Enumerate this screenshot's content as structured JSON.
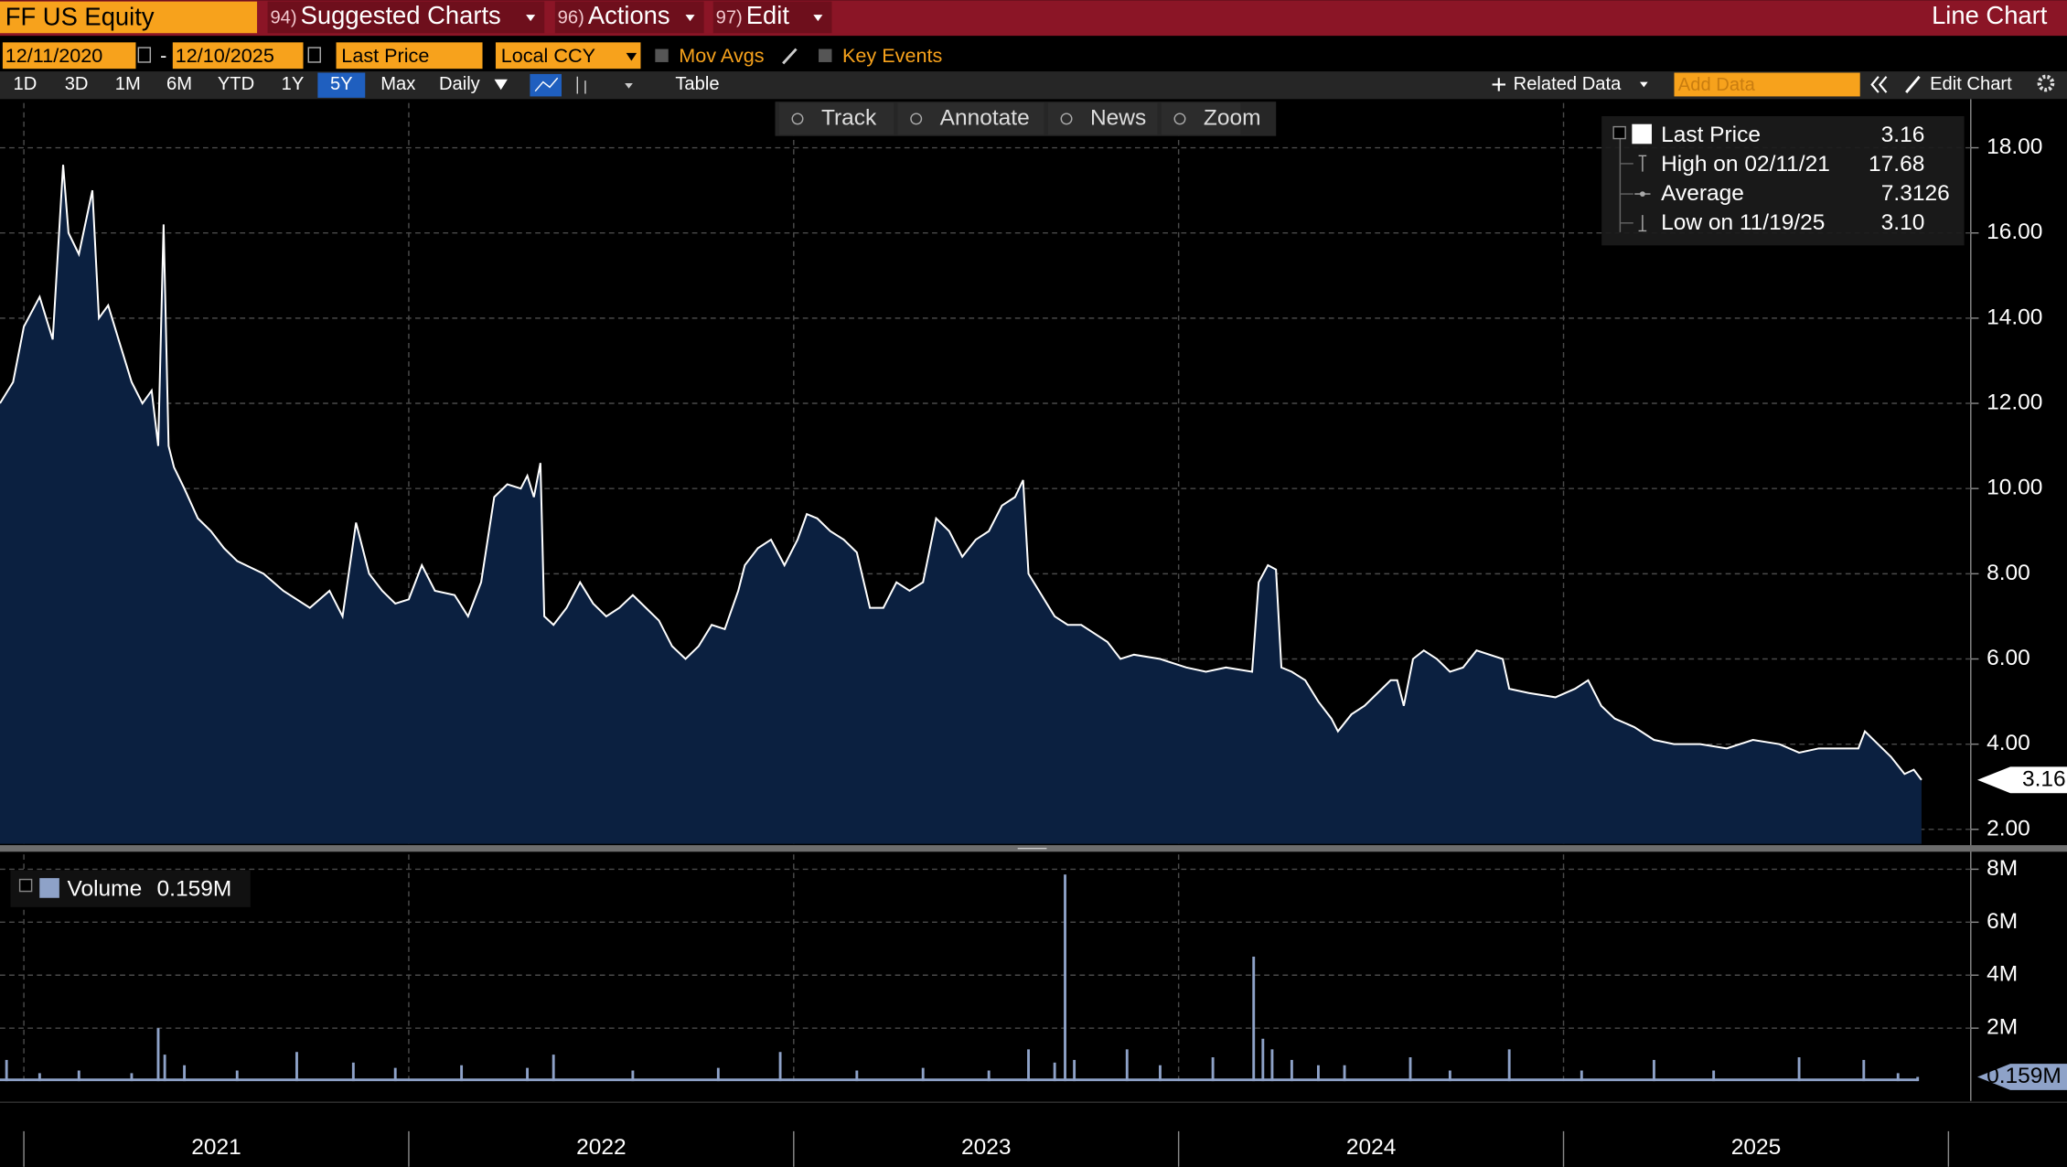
{
  "toolbar": {
    "ticker": "FF US Equity",
    "menus": [
      {
        "key": "94)",
        "label": "Suggested Charts"
      },
      {
        "key": "96)",
        "label": "Actions"
      },
      {
        "key": "97)",
        "label": "Edit"
      }
    ],
    "chart_kind": "Line Chart"
  },
  "controls": {
    "start_date": "12/11/2020",
    "date_separator": "-",
    "end_date": "12/10/2025",
    "field": "Last Price",
    "currency": "Local CCY",
    "options": [
      "Mov Avgs",
      "Key Events"
    ]
  },
  "periods": [
    "1D",
    "3D",
    "1M",
    "6M",
    "YTD",
    "1Y",
    "5Y",
    "Max"
  ],
  "selected_period": "5Y",
  "frequency": "Daily",
  "table_button": "Table",
  "related_data": "Related Data",
  "add_data_placeholder": "Add Data",
  "edit_chart": "Edit Chart",
  "tools": [
    "Track",
    "Annotate",
    "News",
    "Zoom"
  ],
  "legend": [
    {
      "label": "High on 02/11/21",
      "value": "17.68"
    },
    {
      "label": "Average",
      "value": "7.3126"
    },
    {
      "label": "Low on 11/19/25",
      "value": "3.10"
    }
  ],
  "chart_data": [
    {
      "type": "line",
      "series": [
        {
          "name": "Last Price",
          "color": "#ffffff",
          "fill": "#0b2040",
          "x": [
            2020.938,
            2020.972,
            2021.0,
            2021.041,
            2021.075,
            2021.102,
            2021.116,
            2021.143,
            2021.178,
            2021.195,
            2021.219,
            2021.246,
            2021.28,
            2021.308,
            2021.332,
            2021.349,
            2021.363,
            2021.376,
            2021.39,
            2021.417,
            2021.452,
            2021.486,
            2021.52,
            2021.554,
            2021.623,
            2021.674,
            2021.743,
            2021.794,
            2021.828,
            2021.863,
            2021.897,
            2021.931,
            2021.965,
            2022.0,
            2022.034,
            2022.068,
            2022.119,
            2022.154,
            2022.188,
            2022.222,
            2022.256,
            2022.291,
            2022.308,
            2022.325,
            2022.342,
            2022.352,
            2022.376,
            2022.41,
            2022.445,
            2022.479,
            2022.513,
            2022.547,
            2022.582,
            2022.616,
            2022.65,
            2022.684,
            2022.719,
            2022.753,
            2022.787,
            2022.821,
            2022.856,
            2022.873,
            2022.907,
            2022.941,
            2022.976,
            2023.01,
            2023.034,
            2023.061,
            2023.095,
            2023.13,
            2023.164,
            2023.198,
            2023.233,
            2023.267,
            2023.301,
            2023.336,
            2023.37,
            2023.404,
            2023.438,
            2023.473,
            2023.507,
            2023.541,
            2023.575,
            2023.596,
            2023.61,
            2023.644,
            2023.678,
            2023.712,
            2023.747,
            2023.781,
            2023.815,
            2023.849,
            2023.884,
            2023.952,
            2024.02,
            2024.071,
            2024.123,
            2024.191,
            2024.208,
            2024.232,
            2024.253,
            2024.267,
            2024.294,
            2024.329,
            2024.363,
            2024.397,
            2024.414,
            2024.449,
            2024.483,
            2024.517,
            2024.551,
            2024.568,
            2024.585,
            2024.609,
            2024.637,
            2024.671,
            2024.705,
            2024.739,
            2024.774,
            2024.842,
            2024.859,
            2024.91,
            2024.979,
            2025.03,
            2025.064,
            2025.098,
            2025.133,
            2025.184,
            2025.235,
            2025.287,
            2025.355,
            2025.424,
            2025.492,
            2025.561,
            2025.612,
            2025.663,
            2025.732,
            2025.766,
            2025.783,
            2025.817,
            2025.851,
            2025.886,
            2025.91,
            2025.93
          ],
          "values": [
            12.0,
            12.5,
            13.8,
            14.5,
            13.5,
            17.6,
            16.0,
            15.5,
            17.0,
            14.0,
            14.3,
            13.5,
            12.5,
            12.0,
            12.3,
            11.0,
            16.2,
            11.0,
            10.5,
            10.0,
            9.3,
            9.0,
            8.6,
            8.3,
            8.0,
            7.6,
            7.2,
            7.6,
            7.0,
            9.2,
            8.0,
            7.6,
            7.3,
            7.4,
            8.2,
            7.6,
            7.5,
            7.0,
            7.8,
            9.8,
            10.1,
            10.0,
            10.3,
            9.8,
            10.6,
            7.0,
            6.8,
            7.2,
            7.8,
            7.3,
            7.0,
            7.2,
            7.5,
            7.2,
            6.9,
            6.3,
            6.0,
            6.3,
            6.8,
            6.7,
            7.6,
            8.2,
            8.6,
            8.8,
            8.2,
            8.8,
            9.4,
            9.3,
            9.0,
            8.8,
            8.5,
            7.2,
            7.2,
            7.8,
            7.6,
            7.8,
            9.3,
            9.0,
            8.4,
            8.8,
            9.0,
            9.6,
            9.8,
            10.2,
            8.0,
            7.5,
            7.0,
            6.8,
            6.8,
            6.6,
            6.4,
            6.0,
            6.1,
            6.0,
            5.8,
            5.7,
            5.8,
            5.7,
            7.8,
            8.2,
            8.1,
            5.8,
            5.7,
            5.5,
            5.0,
            4.6,
            4.3,
            4.7,
            4.9,
            5.2,
            5.5,
            5.5,
            4.9,
            6.0,
            6.2,
            6.0,
            5.7,
            5.8,
            6.2,
            6.0,
            5.3,
            5.2,
            5.1,
            5.3,
            5.5,
            4.9,
            4.6,
            4.4,
            4.1,
            4.0,
            4.0,
            3.9,
            4.1,
            4.0,
            3.8,
            3.9,
            3.9,
            3.9,
            4.3,
            4.0,
            3.7,
            3.3,
            3.4,
            3.16
          ],
          "last_label": "3.16"
        }
      ],
      "xlim": [
        2020.938,
        2026.058
      ],
      "xticks": [
        2021,
        2022,
        2023,
        2024,
        2025
      ],
      "ylim": [
        1.66,
        19.05
      ],
      "yticks": [
        {
          "value": 2,
          "label": "2.00"
        },
        {
          "value": 4,
          "label": "4.00"
        },
        {
          "value": 6,
          "label": "6.00"
        },
        {
          "value": 8,
          "label": "8.00"
        },
        {
          "value": 10,
          "label": "10.00"
        },
        {
          "value": 12,
          "label": "12.00"
        },
        {
          "value": 14,
          "label": "14.00"
        },
        {
          "value": 16,
          "label": "16.00"
        },
        {
          "value": 18,
          "label": "18.00"
        }
      ],
      "grid": true
    },
    {
      "type": "bar",
      "series": [
        {
          "name": "Volume",
          "color": "#8ea2c8",
          "x": [
            2020.955,
            2021.041,
            2021.143,
            2021.28,
            2021.349,
            2021.366,
            2021.417,
            2021.554,
            2021.709,
            2021.856,
            2021.965,
            2022.137,
            2022.308,
            2022.376,
            2022.582,
            2022.804,
            2022.965,
            2023.164,
            2023.336,
            2023.507,
            2023.61,
            2023.678,
            2023.705,
            2023.729,
            2023.866,
            2023.952,
            2024.089,
            2024.195,
            2024.219,
            2024.243,
            2024.294,
            2024.363,
            2024.431,
            2024.602,
            2024.705,
            2024.859,
            2025.047,
            2025.235,
            2025.39,
            2025.612,
            2025.78,
            2025.869,
            2025.92
          ],
          "values": [
            800000,
            300000,
            400000,
            300000,
            2000000,
            1000000,
            600000,
            400000,
            1100000,
            700000,
            500000,
            600000,
            500000,
            1000000,
            400000,
            500000,
            1100000,
            400000,
            500000,
            400000,
            1200000,
            700000,
            7800000,
            800000,
            1200000,
            600000,
            900000,
            4700000,
            1600000,
            1200000,
            800000,
            600000,
            600000,
            900000,
            400000,
            1200000,
            400000,
            800000,
            400000,
            900000,
            800000,
            300000,
            159000
          ],
          "last_label": "0.159M"
        }
      ],
      "xlim": [
        2020.938,
        2026.058
      ],
      "xticks": [
        2021,
        2022,
        2023,
        2024,
        2025
      ],
      "ylim": [
        0,
        8560000
      ],
      "yticks": [
        {
          "value": 2000000,
          "label": "2M"
        },
        {
          "value": 4000000,
          "label": "4M"
        },
        {
          "value": 6000000,
          "label": "6M"
        },
        {
          "value": 8000000,
          "label": "8M"
        }
      ],
      "grid": true
    }
  ]
}
